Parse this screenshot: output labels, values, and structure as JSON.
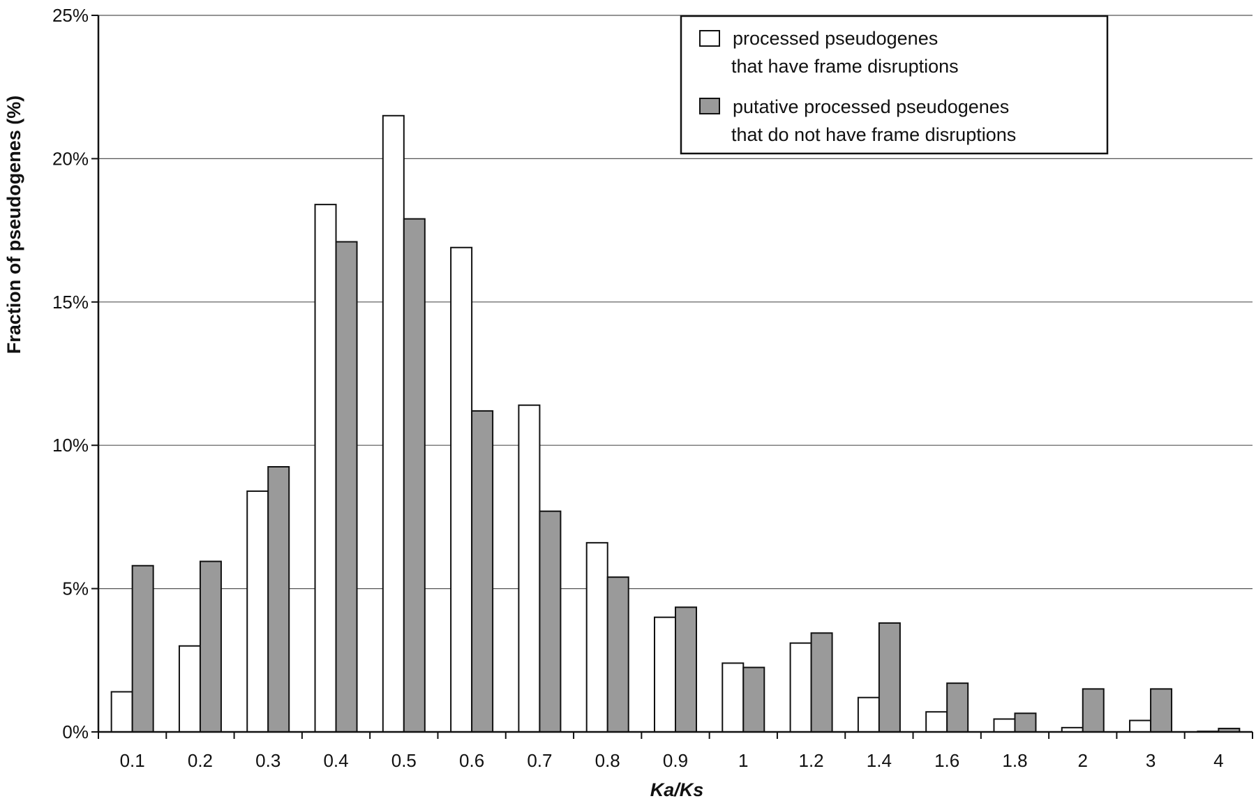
{
  "chart_data": {
    "type": "bar",
    "title": "",
    "xlabel": "Ka/Ks",
    "ylabel": "Fraction of pseudogenes (%)",
    "ylim": [
      0,
      25
    ],
    "yticks": [
      0,
      5,
      10,
      15,
      20,
      25
    ],
    "ytick_labels": [
      "0%",
      "5%",
      "10%",
      "15%",
      "20%",
      "25%"
    ],
    "grid": "horizontal",
    "legend_position": "top-right",
    "categories": [
      "0.1",
      "0.2",
      "0.3",
      "0.4",
      "0.5",
      "0.6",
      "0.7",
      "0.8",
      "0.9",
      "1",
      "1.2",
      "1.4",
      "1.6",
      "1.8",
      "2",
      "3",
      "4"
    ],
    "series": [
      {
        "name": "processed pseudogenes that have frame disruptions",
        "legend_lines": [
          "processed pseudogenes",
          "that have frame disruptions"
        ],
        "color": "#ffffff",
        "values": [
          1.4,
          3.0,
          8.4,
          18.4,
          21.5,
          16.9,
          11.4,
          6.6,
          4.0,
          2.4,
          3.1,
          1.2,
          0.7,
          0.45,
          0.15,
          0.4,
          0.02
        ]
      },
      {
        "name": "putative processed pseudogenes that do not have frame disruptions",
        "legend_lines": [
          "putative processed pseudogenes",
          "that do not have frame disruptions"
        ],
        "color": "#9a9a9a",
        "values": [
          5.8,
          5.95,
          9.25,
          17.1,
          17.9,
          11.2,
          7.7,
          5.4,
          4.35,
          2.25,
          3.45,
          3.8,
          1.7,
          0.65,
          1.5,
          1.5,
          0.12
        ]
      }
    ]
  }
}
